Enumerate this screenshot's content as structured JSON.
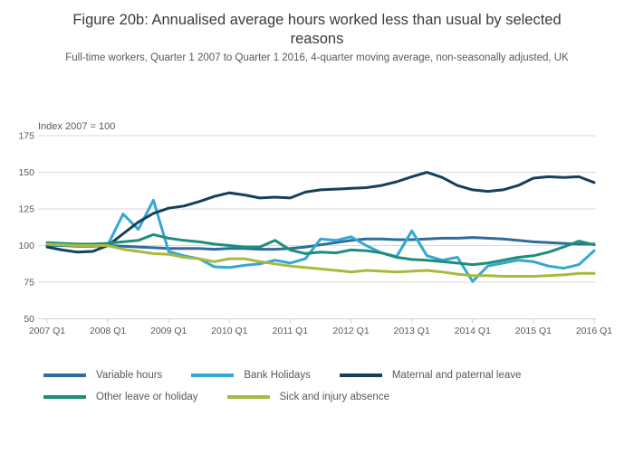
{
  "chart_data": {
    "type": "line",
    "title": "Figure 20b: Annualised average hours worked less than usual by selected reasons",
    "subtitle": "Full-time workers, Quarter 1 2007 to Quarter 1 2016, 4-quarter moving average, non-seasonally adjusted, UK",
    "axis_note": "Index 2007 = 100",
    "xlabel": "",
    "ylabel": "",
    "ylim": [
      50,
      175
    ],
    "yticks": [
      50,
      75,
      100,
      125,
      150,
      175
    ],
    "grid": "horizontal",
    "legend_position": "bottom-left",
    "x_ticklabels": [
      "2007 Q1",
      "2008 Q1",
      "2009 Q1",
      "2010 Q1",
      "2011 Q1",
      "2012 Q1",
      "2013 Q1",
      "2014 Q1",
      "2015 Q1",
      "2016 Q1"
    ],
    "x_quarters_per_tick": 4,
    "n_points": 37,
    "legend_rows": [
      [
        0,
        1,
        2
      ],
      [
        3,
        4
      ]
    ],
    "colors": {
      "grid": "#d9d9d9",
      "axis": "#c4d3dd",
      "tick_text": "#58595b"
    },
    "series": [
      {
        "name": "Variable hours",
        "color": "#2f6c9d",
        "values": [
          100,
          100,
          99.5,
          99.5,
          100,
          99.5,
          99,
          98.5,
          98,
          98,
          98,
          97.5,
          98,
          98,
          97.5,
          97.5,
          98,
          99,
          100.5,
          102,
          103.5,
          104.5,
          104.5,
          104,
          104,
          104.5,
          105,
          105,
          105.5,
          105,
          104.5,
          103.5,
          102.5,
          102,
          101.5,
          101,
          101
        ]
      },
      {
        "name": "Bank Holidays",
        "color": "#35a7d3",
        "values": [
          100,
          100.5,
          100,
          100,
          100.5,
          121.5,
          111,
          131,
          96,
          93,
          91,
          85.5,
          85,
          86.5,
          87.5,
          90,
          88,
          91,
          104.5,
          103.5,
          106,
          100,
          95,
          92.5,
          110,
          93,
          90,
          92,
          75.5,
          86,
          88,
          90,
          89,
          86,
          84.5,
          87,
          96.5
        ]
      },
      {
        "name": "Maternal and paternal leave",
        "color": "#16405a",
        "values": [
          99,
          97,
          95.5,
          96,
          100,
          108,
          116,
          122,
          125.5,
          127,
          130,
          133.5,
          136,
          134.5,
          132.5,
          133,
          132.5,
          136.5,
          138,
          138.5,
          139,
          139.5,
          141,
          143.5,
          147,
          150,
          146.5,
          141,
          138,
          137,
          138,
          141,
          146,
          147,
          146.5,
          147,
          143
        ]
      },
      {
        "name": "Other leave or holiday",
        "color": "#1e8e7a",
        "values": [
          102,
          101.5,
          101,
          101,
          101.5,
          102.5,
          103.5,
          107.5,
          105,
          103.5,
          102.5,
          101,
          100,
          99,
          99,
          103.5,
          97,
          94.5,
          95.5,
          95,
          97,
          96.5,
          95,
          92,
          90.5,
          90,
          89,
          88,
          87,
          88,
          90,
          92,
          93,
          95.5,
          99,
          103,
          100.5
        ]
      },
      {
        "name": "Sick and injury absence",
        "color": "#a8ba3d",
        "values": [
          101,
          100.5,
          100,
          100,
          100,
          97.5,
          96,
          94.5,
          94,
          92,
          91,
          89,
          91,
          91,
          89,
          87.5,
          86,
          85,
          84,
          83,
          82,
          83,
          82.5,
          82,
          82.5,
          83,
          82,
          80.5,
          79.5,
          79.5,
          79,
          79,
          79,
          79.5,
          80,
          81,
          81
        ]
      }
    ]
  }
}
